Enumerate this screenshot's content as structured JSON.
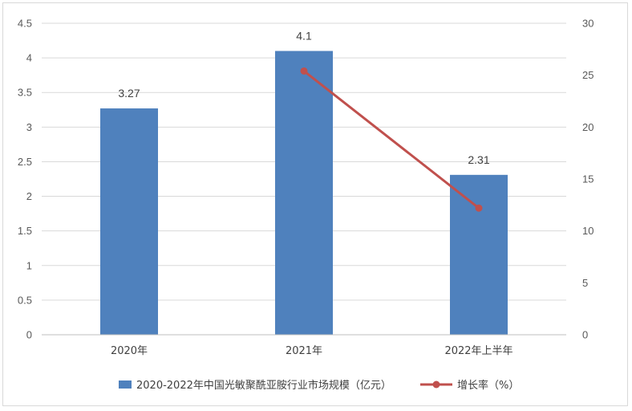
{
  "chart_data": {
    "type": "bar",
    "categories": [
      "2020年",
      "2021年",
      "2022年上半年"
    ],
    "series": [
      {
        "name": "2020-2022年中国光敏聚酰亚胺行业市场规模（亿元）",
        "type": "bar",
        "axis": "left",
        "values": [
          3.27,
          4.1,
          2.31
        ],
        "data_labels": [
          "3.27",
          "4.1",
          "2.31"
        ],
        "color": "#4f81bd"
      },
      {
        "name": "增长率（%）",
        "type": "line",
        "axis": "right",
        "values": [
          null,
          25.4,
          12.2
        ],
        "color": "#c0504d"
      }
    ],
    "ylim_left": [
      0,
      4.5
    ],
    "yticks_left": [
      "0",
      "0.5",
      "1",
      "1.5",
      "2",
      "2.5",
      "3",
      "3.5",
      "4",
      "4.5"
    ],
    "ylim_right": [
      0,
      30
    ],
    "yticks_right": [
      "0",
      "5",
      "10",
      "15",
      "20",
      "25",
      "30"
    ],
    "grid": true,
    "legend_position": "bottom"
  }
}
